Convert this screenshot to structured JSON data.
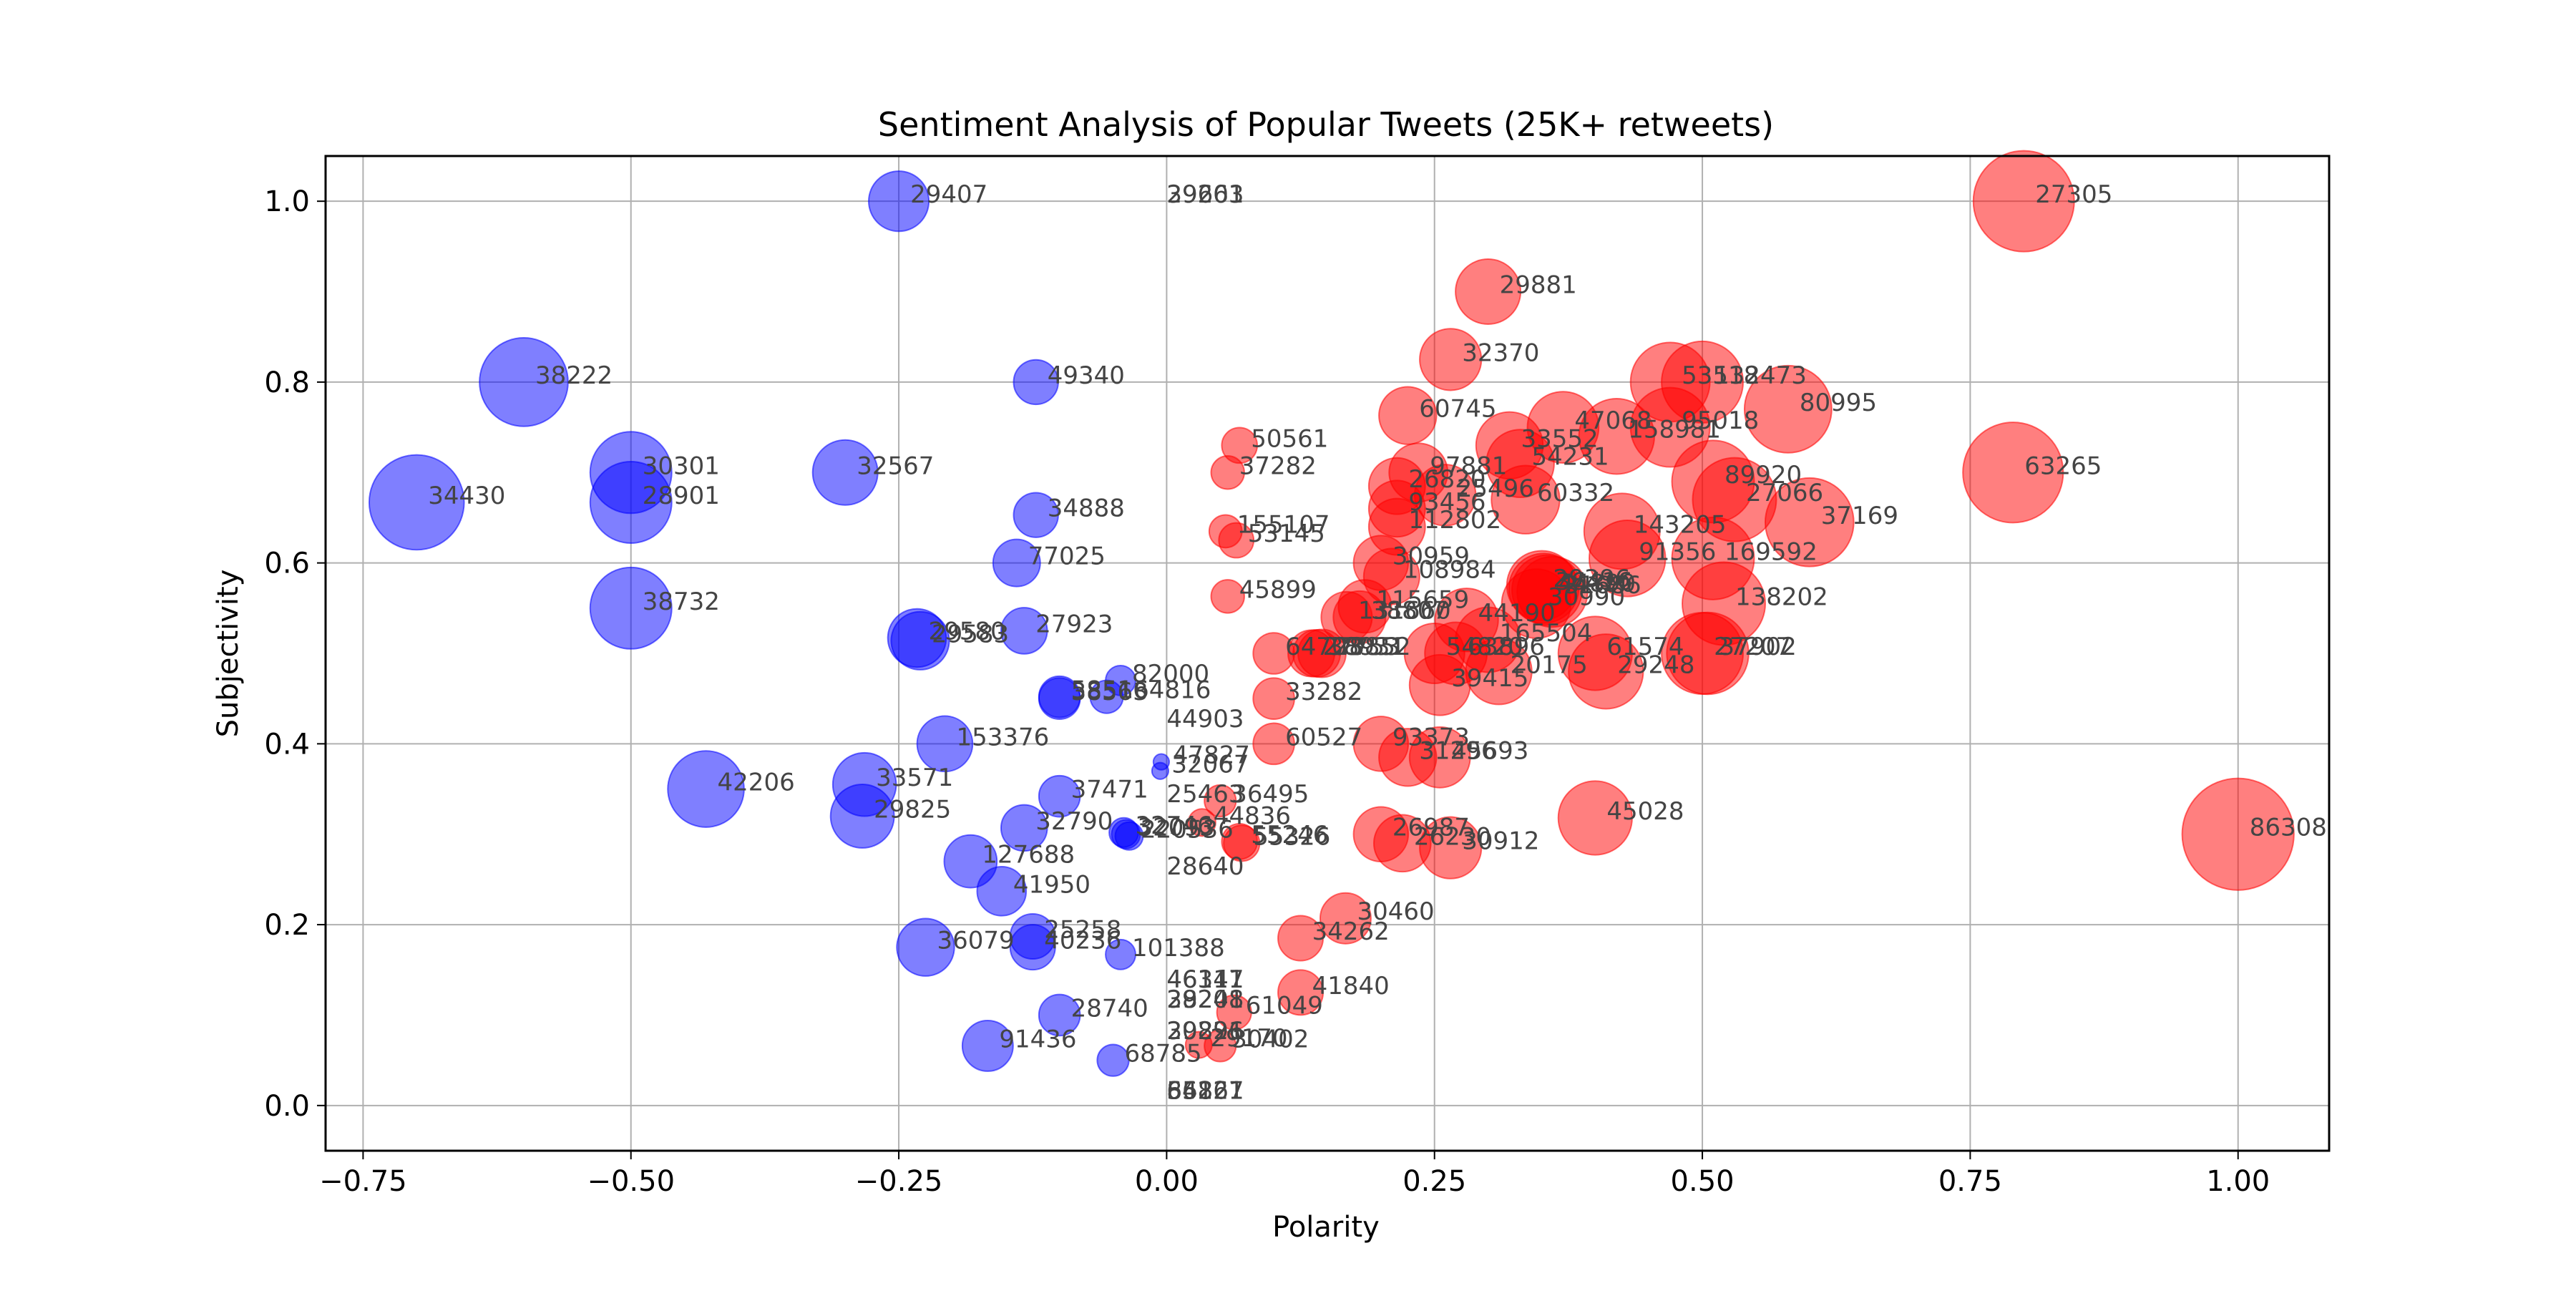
{
  "chart_data": {
    "type": "scatter",
    "title": "Sentiment Analysis of Popular Tweets (25K+ retweets)",
    "xlabel": "Polarity",
    "ylabel": "Subjectivity",
    "xlim": [
      -0.785,
      1.085
    ],
    "ylim": [
      -0.05,
      1.05
    ],
    "xticks": [
      -0.75,
      -0.5,
      -0.25,
      0.0,
      0.25,
      0.5,
      0.75,
      1.0
    ],
    "xtick_labels": [
      "−0.75",
      "−0.50",
      "−0.25",
      "0.00",
      "0.25",
      "0.50",
      "0.75",
      "1.00"
    ],
    "yticks": [
      0.0,
      0.2,
      0.4,
      0.6,
      0.8,
      1.0
    ],
    "ytick_labels": [
      "0.0",
      "0.2",
      "0.4",
      "0.6",
      "0.8",
      "1.0"
    ],
    "grid": true,
    "colors": {
      "positive": "#ff0000",
      "negative": "#0000ff",
      "point_alpha": 0.5,
      "label": "#444444"
    },
    "encoding": {
      "color": "red if polarity > 0, blue if polarity < 0",
      "size": "absolute polarity"
    },
    "points": [
      {
        "label": "27305",
        "x": 0.8,
        "y": 1.0
      },
      {
        "label": "29881",
        "x": 0.3,
        "y": 0.9
      },
      {
        "label": "32370",
        "x": 0.265,
        "y": 0.825
      },
      {
        "label": "53518",
        "x": 0.47,
        "y": 0.8
      },
      {
        "label": "132473",
        "x": 0.5,
        "y": 0.8
      },
      {
        "label": "80995",
        "x": 0.58,
        "y": 0.77
      },
      {
        "label": "60745",
        "x": 0.225,
        "y": 0.763
      },
      {
        "label": "47068",
        "x": 0.37,
        "y": 0.75
      },
      {
        "label": "95018",
        "x": 0.47,
        "y": 0.75
      },
      {
        "label": "158981",
        "x": 0.42,
        "y": 0.74
      },
      {
        "label": "33552",
        "x": 0.32,
        "y": 0.73
      },
      {
        "label": "54231",
        "x": 0.33,
        "y": 0.71
      },
      {
        "label": "63265",
        "x": 0.79,
        "y": 0.7
      },
      {
        "label": "97881",
        "x": 0.235,
        "y": 0.7
      },
      {
        "label": "89920",
        "x": 0.51,
        "y": 0.69
      },
      {
        "label": "26820",
        "x": 0.215,
        "y": 0.685
      },
      {
        "label": "27066",
        "x": 0.53,
        "y": 0.67
      },
      {
        "label": "25496",
        "x": 0.26,
        "y": 0.675
      },
      {
        "label": "60332",
        "x": 0.335,
        "y": 0.67
      },
      {
        "label": "93456",
        "x": 0.215,
        "y": 0.66
      },
      {
        "label": "37169",
        "x": 0.6,
        "y": 0.645
      },
      {
        "label": "112802",
        "x": 0.215,
        "y": 0.64
      },
      {
        "label": "143205",
        "x": 0.425,
        "y": 0.635
      },
      {
        "label": "30959",
        "x": 0.2,
        "y": 0.6
      },
      {
        "label": "91356",
        "x": 0.43,
        "y": 0.605
      },
      {
        "label": "169592",
        "x": 0.51,
        "y": 0.605
      },
      {
        "label": "108984",
        "x": 0.21,
        "y": 0.585
      },
      {
        "label": "29396",
        "x": 0.35,
        "y": 0.575
      },
      {
        "label": "36416",
        "x": 0.352,
        "y": 0.572
      },
      {
        "label": "44890",
        "x": 0.355,
        "y": 0.57
      },
      {
        "label": "31686",
        "x": 0.36,
        "y": 0.568
      },
      {
        "label": "30990",
        "x": 0.345,
        "y": 0.555
      },
      {
        "label": "138202",
        "x": 0.52,
        "y": 0.555
      },
      {
        "label": "115659",
        "x": 0.185,
        "y": 0.552
      },
      {
        "label": "131660",
        "x": 0.168,
        "y": 0.54
      },
      {
        "label": "38807",
        "x": 0.18,
        "y": 0.54
      },
      {
        "label": "44190",
        "x": 0.28,
        "y": 0.537
      },
      {
        "label": "165504",
        "x": 0.3,
        "y": 0.515
      },
      {
        "label": "27753",
        "x": 0.135,
        "y": 0.5
      },
      {
        "label": "38931",
        "x": 0.14,
        "y": 0.5
      },
      {
        "label": "28852",
        "x": 0.145,
        "y": 0.5
      },
      {
        "label": "54820",
        "x": 0.25,
        "y": 0.5
      },
      {
        "label": "63896",
        "x": 0.27,
        "y": 0.5
      },
      {
        "label": "61574",
        "x": 0.4,
        "y": 0.5
      },
      {
        "label": "27207",
        "x": 0.5,
        "y": 0.5
      },
      {
        "label": "37902",
        "x": 0.505,
        "y": 0.5
      },
      {
        "label": "29248",
        "x": 0.41,
        "y": 0.48
      },
      {
        "label": "20175",
        "x": 0.31,
        "y": 0.48
      },
      {
        "label": "39415",
        "x": 0.255,
        "y": 0.465
      },
      {
        "label": "33282",
        "x": 0.1,
        "y": 0.45
      },
      {
        "label": "93373",
        "x": 0.2,
        "y": 0.4
      },
      {
        "label": "60527",
        "x": 0.1,
        "y": 0.4
      },
      {
        "label": "31296",
        "x": 0.225,
        "y": 0.385
      },
      {
        "label": "45693",
        "x": 0.255,
        "y": 0.385
      },
      {
        "label": "45028",
        "x": 0.4,
        "y": 0.318
      },
      {
        "label": "86308",
        "x": 1.0,
        "y": 0.3
      },
      {
        "label": "26987",
        "x": 0.2,
        "y": 0.3
      },
      {
        "label": "26230",
        "x": 0.22,
        "y": 0.29
      },
      {
        "label": "30912",
        "x": 0.265,
        "y": 0.285
      },
      {
        "label": "55246",
        "x": 0.068,
        "y": 0.292
      },
      {
        "label": "55326",
        "x": 0.07,
        "y": 0.29
      },
      {
        "label": "30460",
        "x": 0.167,
        "y": 0.207
      },
      {
        "label": "34262",
        "x": 0.125,
        "y": 0.185
      },
      {
        "label": "41840",
        "x": 0.125,
        "y": 0.125
      },
      {
        "label": "61049",
        "x": 0.063,
        "y": 0.103
      },
      {
        "label": "30402",
        "x": 0.05,
        "y": 0.066
      },
      {
        "label": "29170",
        "x": 0.03,
        "y": 0.067
      },
      {
        "label": "50561",
        "x": 0.068,
        "y": 0.73
      },
      {
        "label": "37282",
        "x": 0.057,
        "y": 0.7
      },
      {
        "label": "155107",
        "x": 0.055,
        "y": 0.635
      },
      {
        "label": "53145",
        "x": 0.065,
        "y": 0.625
      },
      {
        "label": "45899",
        "x": 0.057,
        "y": 0.563
      },
      {
        "label": "64703",
        "x": 0.1,
        "y": 0.5
      },
      {
        "label": "36495",
        "x": 0.05,
        "y": 0.337
      },
      {
        "label": "44836",
        "x": 0.033,
        "y": 0.313
      },
      {
        "label": "38222",
        "x": -0.6,
        "y": 0.8
      },
      {
        "label": "34430",
        "x": -0.7,
        "y": 0.667
      },
      {
        "label": "30301",
        "x": -0.5,
        "y": 0.7
      },
      {
        "label": "28901",
        "x": -0.5,
        "y": 0.667
      },
      {
        "label": "38732",
        "x": -0.5,
        "y": 0.55
      },
      {
        "label": "32567",
        "x": -0.3,
        "y": 0.7
      },
      {
        "label": "29407",
        "x": -0.25,
        "y": 1.0
      },
      {
        "label": "49340",
        "x": -0.122,
        "y": 0.8
      },
      {
        "label": "34888",
        "x": -0.122,
        "y": 0.653
      },
      {
        "label": "77025",
        "x": -0.14,
        "y": 0.6
      },
      {
        "label": "29580",
        "x": -0.233,
        "y": 0.517
      },
      {
        "label": "29583",
        "x": -0.23,
        "y": 0.514
      },
      {
        "label": "27923",
        "x": -0.133,
        "y": 0.525
      },
      {
        "label": "82000",
        "x": -0.043,
        "y": 0.47
      },
      {
        "label": "58516",
        "x": -0.1,
        "y": 0.452
      },
      {
        "label": "38563",
        "x": -0.1,
        "y": 0.45
      },
      {
        "label": "164816",
        "x": -0.056,
        "y": 0.452
      },
      {
        "label": "153376",
        "x": -0.207,
        "y": 0.4
      },
      {
        "label": "42206",
        "x": -0.43,
        "y": 0.35
      },
      {
        "label": "33571",
        "x": -0.282,
        "y": 0.355
      },
      {
        "label": "29825",
        "x": -0.284,
        "y": 0.32
      },
      {
        "label": "37471",
        "x": -0.1,
        "y": 0.342
      },
      {
        "label": "32790",
        "x": -0.133,
        "y": 0.307
      },
      {
        "label": "32746",
        "x": -0.04,
        "y": 0.302
      },
      {
        "label": "32093",
        "x": -0.038,
        "y": 0.3
      },
      {
        "label": "220536",
        "x": -0.035,
        "y": 0.298
      },
      {
        "label": "127688",
        "x": -0.183,
        "y": 0.27
      },
      {
        "label": "41950",
        "x": -0.154,
        "y": 0.237
      },
      {
        "label": "25258",
        "x": -0.125,
        "y": 0.187
      },
      {
        "label": "40236",
        "x": -0.125,
        "y": 0.175
      },
      {
        "label": "36079",
        "x": -0.225,
        "y": 0.175
      },
      {
        "label": "101388",
        "x": -0.043,
        "y": 0.167
      },
      {
        "label": "28740",
        "x": -0.1,
        "y": 0.1
      },
      {
        "label": "91436",
        "x": -0.167,
        "y": 0.066
      },
      {
        "label": "68785",
        "x": -0.05,
        "y": 0.05
      },
      {
        "label": "47827",
        "x": -0.005,
        "y": 0.38
      },
      {
        "label": "32067",
        "x": -0.006,
        "y": 0.37
      }
    ],
    "zero_polarity_labels": [
      {
        "label": "29201",
        "y": 1.0
      },
      {
        "label": "39663",
        "y": 1.0
      },
      {
        "label": "44903",
        "y": 0.42
      },
      {
        "label": "25463",
        "y": 0.337
      },
      {
        "label": "28640",
        "y": 0.257
      },
      {
        "label": "46341",
        "y": 0.132
      },
      {
        "label": "46117",
        "y": 0.132
      },
      {
        "label": "28208",
        "y": 0.11
      },
      {
        "label": "39241",
        "y": 0.11
      },
      {
        "label": "29896",
        "y": 0.075
      },
      {
        "label": "30221",
        "y": 0.075
      },
      {
        "label": "55821",
        "y": 0.009
      },
      {
        "label": "86227",
        "y": 0.009
      },
      {
        "label": "64161",
        "y": 0.009
      }
    ]
  }
}
